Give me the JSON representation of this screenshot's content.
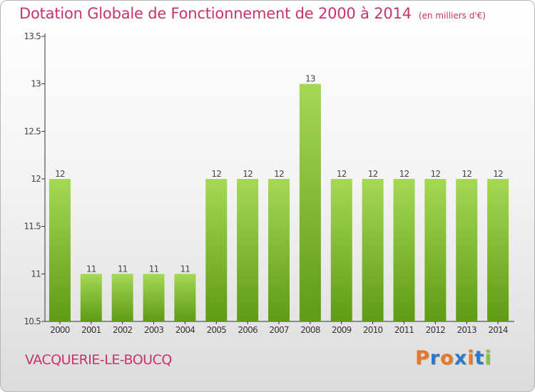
{
  "header": {
    "title": "Dotation Globale de Fonctionnement de 2000 à 2014",
    "unit": "(en milliers d'€)"
  },
  "footer": {
    "commune": "VACQUERIE-LE-BOUCQ",
    "brand": "Proxiti"
  },
  "colors": {
    "title": "#c8326e",
    "bar_light": "#a5d855",
    "bar_dark": "#5f9b14",
    "brand_letters": [
      "#e6782a",
      "#2d78c8",
      "#e6782a",
      "#2d78c8",
      "#e6782a",
      "#2d78c8",
      "#8ac43e"
    ]
  },
  "chart_data": {
    "type": "bar",
    "categories": [
      "2000",
      "2001",
      "2002",
      "2003",
      "2004",
      "2005",
      "2006",
      "2007",
      "2008",
      "2009",
      "2010",
      "2011",
      "2012",
      "2013",
      "2014"
    ],
    "values": [
      12,
      11,
      11,
      11,
      11,
      12,
      12,
      12,
      13,
      12,
      12,
      12,
      12,
      12,
      12
    ],
    "labels": [
      "12",
      "11",
      "11",
      "11",
      "11",
      "12",
      "12",
      "12",
      "13",
      "12",
      "12",
      "12",
      "12",
      "12",
      "12"
    ],
    "ylim": [
      10.5,
      13.5
    ],
    "yticks": [
      10.5,
      11,
      11.5,
      12,
      12.5,
      13,
      13.5
    ],
    "ytick_labels": [
      "10.5",
      "11",
      "11.5",
      "12",
      "12.5",
      "13",
      "13.5"
    ],
    "grid": false,
    "xlabel": "",
    "ylabel": ""
  }
}
